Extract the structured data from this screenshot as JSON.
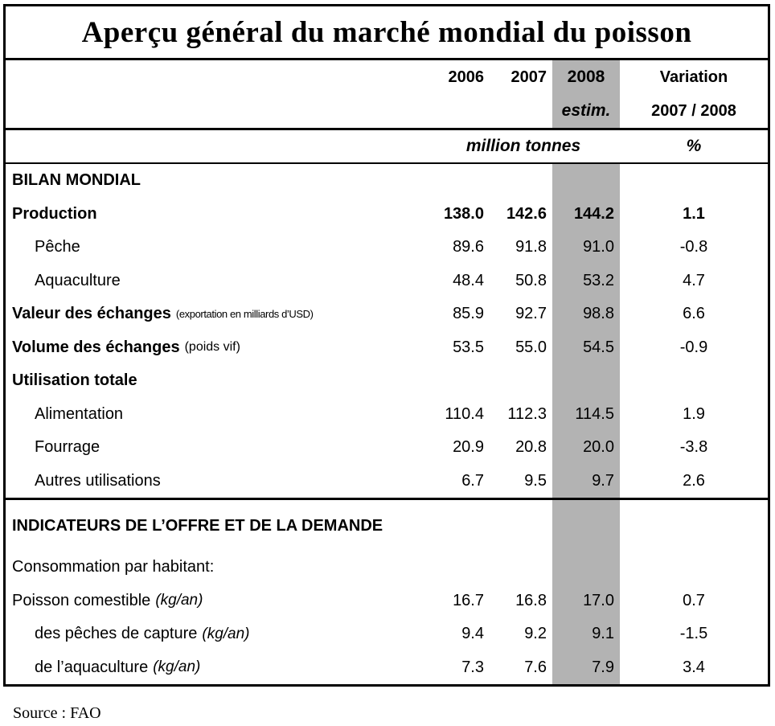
{
  "title": "Aperçu général du marché mondial du poisson",
  "header": {
    "col_2006": "2006",
    "col_2007": "2007",
    "col_2008": "2008",
    "estim": "estim.",
    "variation": "Variation",
    "variation_years": "2007 / 2008",
    "units": "million tonnes",
    "percent": "%"
  },
  "rows": [
    {
      "label": "BILAN MONDIAL"
    },
    {
      "label": "Production",
      "y2006": "138.0",
      "y2007": "142.6",
      "y2008": "144.2",
      "variation": "1.1"
    },
    {
      "label": "Pêche",
      "y2006": "89.6",
      "y2007": "91.8",
      "y2008": "91.0",
      "variation": "-0.8"
    },
    {
      "label": "Aquaculture",
      "y2006": "48.4",
      "y2007": "50.8",
      "y2008": "53.2",
      "variation": "4.7"
    },
    {
      "label": "Valeur des échanges",
      "note": "(exportation en milliards d’USD)",
      "y2006": "85.9",
      "y2007": "92.7",
      "y2008": "98.8",
      "variation": "6.6"
    },
    {
      "label": "Volume des échanges",
      "note": "(poids vif)",
      "y2006": "53.5",
      "y2007": "55.0",
      "y2008": "54.5",
      "variation": "-0.9"
    },
    {
      "label": "Utilisation totale"
    },
    {
      "label": "Alimentation",
      "y2006": "110.4",
      "y2007": "112.3",
      "y2008": "114.5",
      "variation": "1.9"
    },
    {
      "label": "Fourrage",
      "y2006": "20.9",
      "y2007": "20.8",
      "y2008": "20.0",
      "variation": "-3.8"
    },
    {
      "label": "Autres utilisations",
      "y2006": "6.7",
      "y2007": "9.5",
      "y2008": "9.7",
      "variation": "2.6"
    },
    {
      "label": "INDICATEURS DE L’OFFRE ET DE LA DEMANDE"
    },
    {
      "label": "Consommation par habitant:"
    },
    {
      "label": "Poisson comestible",
      "note": "(kg/an)",
      "y2006": "16.7",
      "y2007": "16.8",
      "y2008": "17.0",
      "variation": "0.7"
    },
    {
      "label": "des pêches de capture",
      "note": "(kg/an)",
      "y2006": "9.4",
      "y2007": "9.2",
      "y2008": "9.1",
      "variation": "-1.5"
    },
    {
      "label": "de l’aquaculture",
      "note": "(kg/an)",
      "y2006": "7.3",
      "y2007": "7.6",
      "y2008": "7.9",
      "variation": "3.4"
    }
  ],
  "source": "Source : FAO",
  "colors": {
    "highlight_2008_column": "#b3b3b3"
  }
}
